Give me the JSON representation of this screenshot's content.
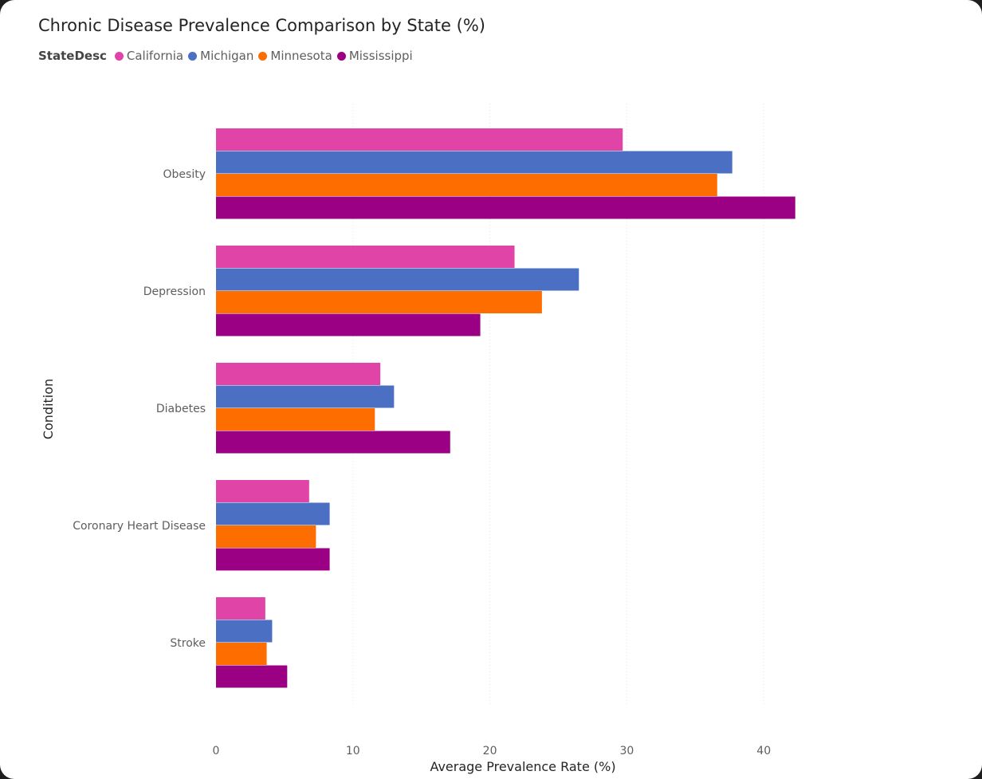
{
  "chart_data": {
    "type": "bar",
    "orientation": "horizontal",
    "title": "Chronic Disease Prevalence Comparison by State (%)",
    "legend_title": "StateDesc",
    "legend_position": "top-left",
    "xlabel": "Average Prevalence Rate (%)",
    "ylabel": "Condition",
    "xlim": [
      0,
      45
    ],
    "xticks": [
      0,
      10,
      20,
      30,
      40
    ],
    "grid": true,
    "categories": [
      "Obesity",
      "Depression",
      "Diabetes",
      "Coronary Heart Disease",
      "Stroke"
    ],
    "series": [
      {
        "name": "California",
        "color": "#e044a7",
        "values": [
          29.7,
          21.8,
          12.0,
          6.8,
          3.6
        ]
      },
      {
        "name": "Michigan",
        "color": "#4a6fc3",
        "values": [
          37.7,
          26.5,
          13.0,
          8.3,
          4.1
        ]
      },
      {
        "name": "Minnesota",
        "color": "#fe6d00",
        "values": [
          36.6,
          23.8,
          11.6,
          7.3,
          3.7
        ]
      },
      {
        "name": "Mississippi",
        "color": "#9b0084",
        "values": [
          42.3,
          19.3,
          17.1,
          8.3,
          5.2
        ]
      }
    ]
  }
}
